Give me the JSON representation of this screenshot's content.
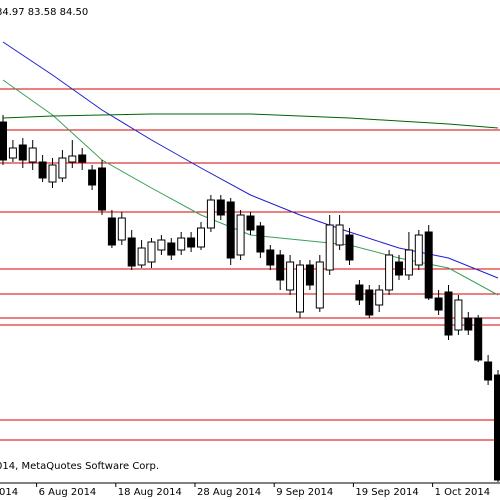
{
  "chart_data": {
    "type": "candlestick",
    "header_text": "84.97 83.58 84.50",
    "copyright": "014, MetaQuotes Software Corp.",
    "categories": [
      "014",
      null,
      null,
      null,
      "6 Aug 2014",
      null,
      null,
      null,
      null,
      null,
      null,
      null,
      "18 Aug 2014",
      null,
      null,
      null,
      null,
      null,
      null,
      null,
      "28 Aug 2014",
      null,
      null,
      null,
      null,
      null,
      null,
      null,
      "9 Sep 2014",
      null,
      null,
      null,
      null,
      null,
      null,
      null,
      "19 Sep 2014",
      null,
      null,
      null,
      null,
      null,
      null,
      null,
      "1 Oct 2014",
      null,
      null,
      null,
      null,
      null,
      null
    ],
    "open": [
      97.9,
      96.1,
      96.75,
      95.9,
      95.9,
      94.9,
      95.1,
      95.9,
      96.25,
      95.5,
      95.6,
      93.1,
      92.0,
      92.1,
      90.75,
      90.9,
      91.5,
      91.85,
      91.5,
      92.1,
      91.65,
      92.6,
      94.0,
      93.9,
      91.25,
      93.2,
      92.7,
      91.5,
      91.25,
      89.5,
      88.4,
      90.75,
      88.6,
      90.5,
      91.75,
      92.25,
      89.75,
      89.5,
      88.75,
      89.5,
      90.9,
      90.25,
      90.75,
      92.4,
      89.1,
      89.4,
      87.5,
      88.1,
      88.1,
      85.9,
      85.25
    ],
    "high": [
      98.25,
      97.0,
      97.1,
      97.0,
      96.25,
      96.1,
      96.5,
      97.0,
      96.6,
      95.75,
      96.0,
      93.5,
      93.4,
      92.5,
      92.0,
      92.1,
      92.25,
      92.1,
      92.4,
      92.4,
      92.9,
      94.25,
      94.25,
      94.1,
      93.5,
      93.4,
      92.9,
      91.75,
      91.5,
      91.25,
      91.0,
      91.0,
      91.25,
      93.25,
      93.25,
      92.6,
      90.0,
      89.75,
      89.75,
      91.5,
      91.25,
      92.4,
      92.5,
      92.75,
      89.5,
      89.75,
      89.25,
      88.4,
      88.25,
      86.25,
      85.5
    ],
    "low": [
      95.75,
      95.9,
      95.6,
      95.5,
      94.9,
      94.6,
      94.9,
      95.6,
      95.5,
      94.5,
      93.25,
      91.6,
      91.75,
      90.5,
      90.6,
      90.6,
      91.25,
      91.0,
      91.25,
      91.4,
      91.5,
      92.4,
      93.0,
      90.75,
      91.0,
      92.25,
      91.1,
      90.5,
      89.5,
      89.25,
      88.1,
      89.5,
      88.4,
      90.25,
      91.5,
      90.75,
      88.75,
      88.1,
      88.4,
      89.25,
      90.0,
      90.0,
      90.5,
      89.0,
      88.25,
      87.0,
      87.25,
      87.25,
      85.9,
      84.75,
      79.9
    ],
    "close": [
      96.0,
      96.6,
      96.0,
      96.6,
      95.1,
      95.75,
      96.1,
      96.2,
      95.9,
      94.75,
      93.5,
      91.75,
      93.1,
      90.7,
      91.6,
      91.9,
      92.0,
      91.25,
      92.1,
      91.65,
      92.6,
      94.0,
      93.25,
      91.1,
      93.25,
      92.5,
      91.4,
      90.75,
      90.0,
      90.9,
      90.75,
      89.75,
      90.9,
      92.75,
      92.75,
      91.0,
      89.0,
      88.25,
      89.5,
      91.25,
      90.25,
      91.5,
      92.25,
      89.1,
      88.5,
      87.25,
      89.0,
      87.5,
      86.0,
      85.0,
      80.0
    ],
    "up_color": "#ffffff",
    "down_color": "#000000",
    "lines": [
      {
        "color": "#1f1fcf",
        "x": [
          0,
          5,
          10,
          15,
          20,
          25,
          30,
          35,
          40,
          45,
          50
        ],
        "values": [
          101.9,
          100.25,
          98.5,
          97.0,
          95.6,
          94.25,
          93.25,
          92.4,
          91.6,
          91.1,
          90.1
        ]
      },
      {
        "color": "#3aa05a",
        "x": [
          0,
          5,
          10,
          15,
          20,
          25,
          30,
          35,
          40,
          45,
          50
        ],
        "values": [
          100.0,
          98.25,
          96.0,
          94.6,
          93.25,
          92.25,
          92.0,
          91.75,
          91.1,
          90.6,
          89.25
        ]
      },
      {
        "color": "#006400",
        "x": [
          0,
          5,
          10,
          15,
          20,
          25,
          30,
          35,
          40,
          45,
          50
        ],
        "values": [
          98.1,
          98.2,
          98.25,
          98.3,
          98.3,
          98.3,
          98.2,
          98.1,
          97.95,
          97.8,
          97.6
        ]
      }
    ],
    "hlines": [
      99.55,
      97.5,
      95.85,
      93.4,
      90.55,
      89.3,
      88.1,
      87.75,
      83.0,
      82.0
    ],
    "hline_color": "#d40000",
    "ylim": [
      79.85,
      104
    ]
  }
}
